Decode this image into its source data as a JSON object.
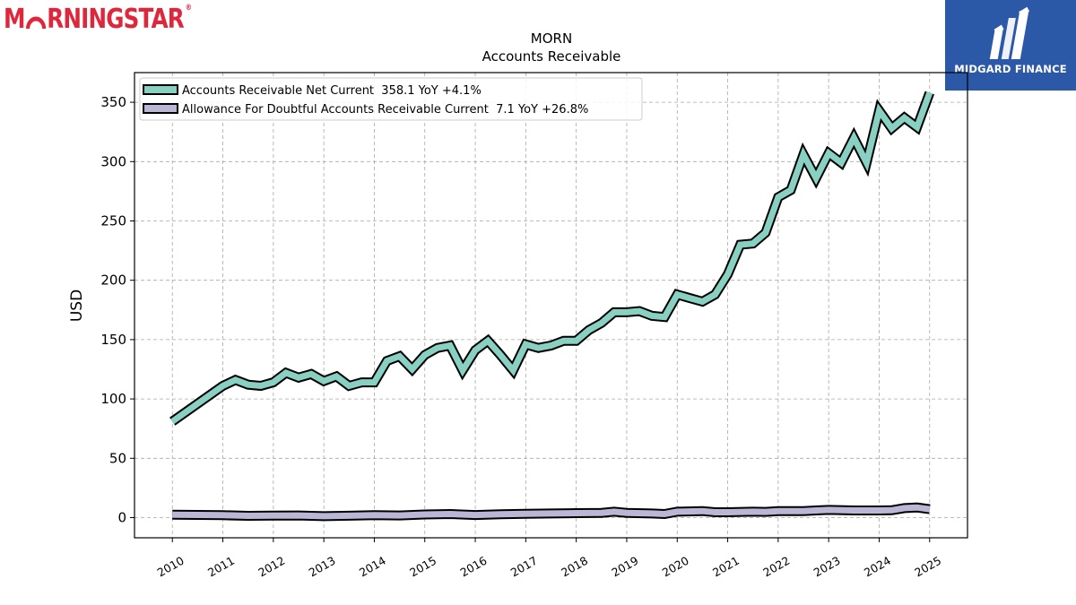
{
  "brand_left": {
    "name_prefix": "M",
    "name_suffix": "RNINGSTAR",
    "reg_mark": "®",
    "color": "#e0263b"
  },
  "brand_right": {
    "name": "MIDGARD FINANCE",
    "color": "#2c58a8"
  },
  "chart_data": {
    "type": "area",
    "title": "MORN",
    "subtitle": "Accounts Receivable",
    "ylabel": "USD",
    "xlabel": "",
    "xlim": [
      2009.25,
      2025.75
    ],
    "ylim": [
      -17,
      375
    ],
    "yticks": [
      0,
      50,
      100,
      150,
      200,
      250,
      300,
      350
    ],
    "xticks": [
      2010,
      2011,
      2012,
      2013,
      2014,
      2015,
      2016,
      2017,
      2018,
      2019,
      2020,
      2021,
      2022,
      2023,
      2024,
      2025
    ],
    "grid": true,
    "legend_position": "top-left",
    "series": [
      {
        "name": "Accounts Receivable Net Current  358.1 YoY +4.1%",
        "color": "#88d0c2",
        "x": [
          2010.0,
          2011.0,
          2011.25,
          2011.5,
          2011.75,
          2012.0,
          2012.25,
          2012.5,
          2012.75,
          2013.0,
          2013.25,
          2013.5,
          2013.75,
          2014.0,
          2014.25,
          2014.5,
          2014.75,
          2015.0,
          2015.25,
          2015.5,
          2015.75,
          2016.0,
          2016.25,
          2016.5,
          2016.75,
          2017.0,
          2017.25,
          2017.5,
          2017.75,
          2018.0,
          2018.25,
          2018.5,
          2018.75,
          2019.0,
          2019.25,
          2019.5,
          2019.75,
          2020.0,
          2020.25,
          2020.5,
          2020.75,
          2021.0,
          2021.25,
          2021.5,
          2021.75,
          2022.0,
          2022.25,
          2022.5,
          2022.75,
          2023.0,
          2023.25,
          2023.5,
          2023.75,
          2024.0,
          2024.25,
          2024.5,
          2024.75,
          2025.0
        ],
        "values": [
          81,
          111,
          116,
          112,
          111,
          114,
          122,
          118,
          121,
          115,
          119,
          111,
          114,
          114,
          132,
          136,
          125,
          137,
          143,
          145,
          124,
          141,
          149,
          137,
          124,
          146,
          143,
          145,
          149,
          149,
          158,
          164,
          173,
          173,
          174,
          170,
          169,
          188,
          185,
          182,
          188,
          205,
          230,
          231,
          240,
          270,
          276,
          306,
          286,
          307,
          299,
          320,
          299,
          343,
          328,
          337,
          329,
          358
        ]
      },
      {
        "name": "Allowance For Doubtful Accounts Receivable Current  7.1 YoY +26.8%",
        "color": "#b9b6d6",
        "x": [
          2010.0,
          2011.0,
          2011.5,
          2012.0,
          2012.5,
          2013.0,
          2013.5,
          2014.0,
          2014.5,
          2015.0,
          2015.5,
          2016.0,
          2016.5,
          2017.0,
          2017.5,
          2018.0,
          2018.5,
          2018.75,
          2019.0,
          2019.5,
          2019.75,
          2020.0,
          2020.5,
          2020.75,
          2021.0,
          2021.5,
          2021.75,
          2022.0,
          2022.5,
          2022.75,
          2023.0,
          2023.5,
          2024.0,
          2024.25,
          2024.5,
          2024.75,
          2025.0
        ],
        "values": [
          2.5,
          2.0,
          1.5,
          1.7,
          1.8,
          1.2,
          1.6,
          2.0,
          1.8,
          2.6,
          3.0,
          2.2,
          2.8,
          3.2,
          3.5,
          3.8,
          4.0,
          5.0,
          4.0,
          3.5,
          3.0,
          5.0,
          5.5,
          4.5,
          4.5,
          5.0,
          4.8,
          5.5,
          5.5,
          6.0,
          6.5,
          6.0,
          6.0,
          6.2,
          8.0,
          8.5,
          7.1
        ]
      }
    ]
  }
}
